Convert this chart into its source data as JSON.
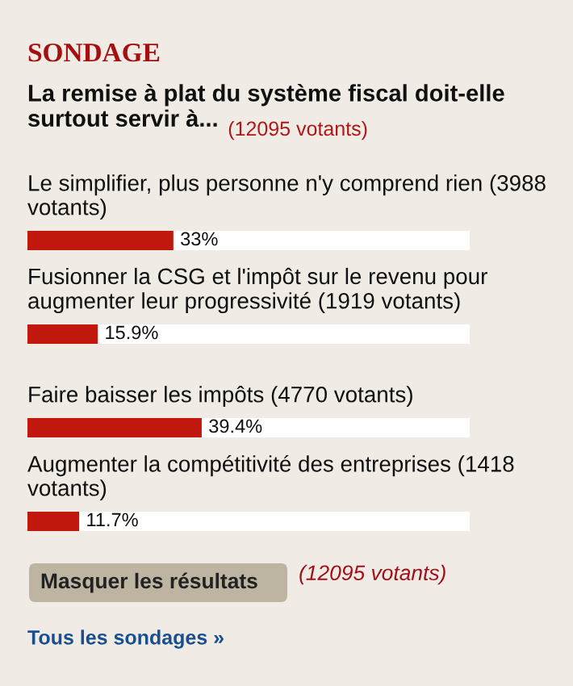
{
  "chart_data": {
    "type": "bar",
    "orientation": "horizontal",
    "title": "SONDAGE",
    "subtitle": "La remise à plat du système fiscal doit-elle surtout servir à...",
    "categories": [
      "Le simplifier, plus personne n'y comprend rien (3988 votants)",
      "Fusionner la CSG et l'impôt sur le revenu pour augmenter leur progressivité (1919 votants)",
      "Faire baisser les impôts (4770 votants)",
      "Augmenter la compétitivité des entreprises (1418 votants)"
    ],
    "values": [
      33,
      15.9,
      39.4,
      11.7
    ],
    "value_labels": [
      "33%",
      "15.9%",
      "39.4%",
      "11.7%"
    ],
    "color": "#c0180c",
    "xlim": [
      0,
      100
    ],
    "tick_labels": false,
    "annotations": [
      "(12095 votants)",
      "Masquer les résultats",
      "(12095 votants)",
      "Tous les sondages »"
    ]
  }
}
